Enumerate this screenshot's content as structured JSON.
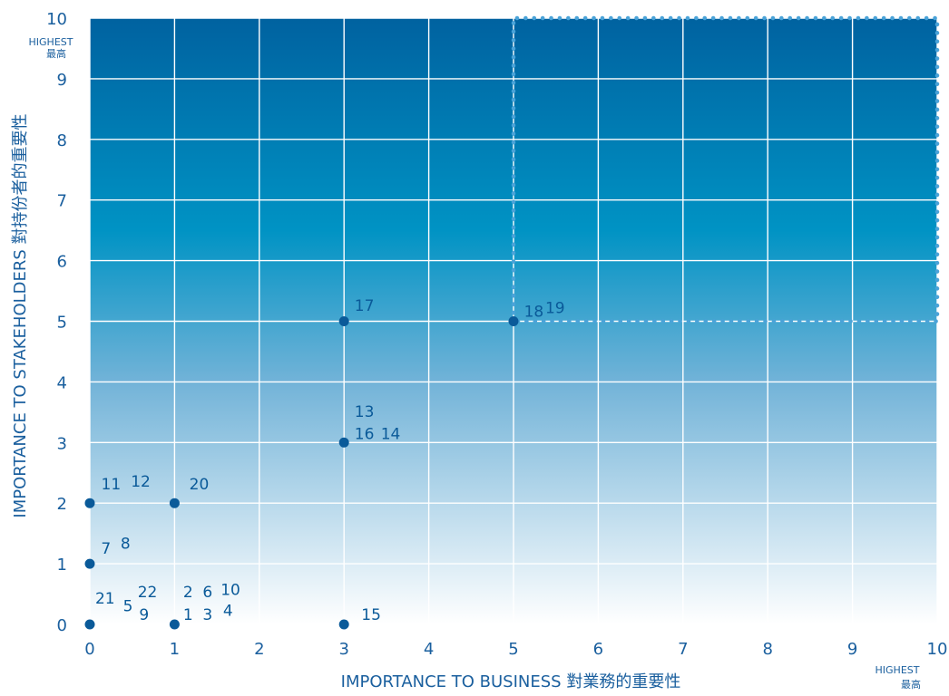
{
  "chart_data": {
    "type": "scatter",
    "x_axis": {
      "label": "IMPORTANCE TO BUSINESS 對業務的重要性",
      "range": [
        0,
        10
      ],
      "ticks": [
        0,
        1,
        2,
        3,
        4,
        5,
        6,
        7,
        8,
        9,
        10
      ],
      "max_label_line1": "HIGHEST",
      "max_label_line2": "最高"
    },
    "y_axis": {
      "label": "IMPORTANCE TO STAKEHOLDERS 對持份者的重要性",
      "range": [
        0,
        10
      ],
      "ticks": [
        0,
        1,
        2,
        3,
        4,
        5,
        6,
        7,
        8,
        9,
        10
      ],
      "max_label_line1": "HIGHEST",
      "max_label_line2": "最高"
    },
    "grid": true,
    "background_gradient": [
      "#0062a0",
      "#0093c4",
      "#72b3d8",
      "#ffffff"
    ],
    "highlight_region": {
      "x": [
        5,
        10
      ],
      "y": [
        5,
        10
      ],
      "style": "dotted"
    },
    "points": [
      {
        "x": 0,
        "y": 0,
        "labels": [
          {
            "text": "21",
            "dx": 0.18,
            "dy": 0.45
          },
          {
            "text": "5",
            "dx": 0.45,
            "dy": 0.32
          },
          {
            "text": "22",
            "dx": 0.68,
            "dy": 0.55
          },
          {
            "text": "9",
            "dx": 0.64,
            "dy": 0.18
          }
        ]
      },
      {
        "x": 1,
        "y": 0,
        "labels": [
          {
            "text": "1",
            "dx": 0.16,
            "dy": 0.18
          },
          {
            "text": "3",
            "dx": 0.39,
            "dy": 0.18
          },
          {
            "text": "2",
            "dx": 0.16,
            "dy": 0.55
          },
          {
            "text": "6",
            "dx": 0.39,
            "dy": 0.55
          },
          {
            "text": "4",
            "dx": 0.63,
            "dy": 0.25
          },
          {
            "text": "10",
            "dx": 0.66,
            "dy": 0.59
          }
        ]
      },
      {
        "x": 3,
        "y": 0,
        "labels": [
          {
            "text": "15",
            "dx": 0.32,
            "dy": 0.18
          }
        ]
      },
      {
        "x": 0,
        "y": 1,
        "labels": [
          {
            "text": "7",
            "dx": 0.19,
            "dy": 0.27
          },
          {
            "text": "8",
            "dx": 0.42,
            "dy": 0.35
          }
        ]
      },
      {
        "x": 0,
        "y": 2,
        "labels": [
          {
            "text": "11",
            "dx": 0.25,
            "dy": 0.33
          },
          {
            "text": "12",
            "dx": 0.6,
            "dy": 0.38
          }
        ]
      },
      {
        "x": 1,
        "y": 2,
        "labels": [
          {
            "text": "20",
            "dx": 0.29,
            "dy": 0.33
          }
        ]
      },
      {
        "x": 3,
        "y": 3,
        "labels": [
          {
            "text": "13",
            "dx": 0.24,
            "dy": 0.53
          },
          {
            "text": "16",
            "dx": 0.24,
            "dy": 0.16
          },
          {
            "text": "14",
            "dx": 0.55,
            "dy": 0.16
          }
        ]
      },
      {
        "x": 3,
        "y": 5,
        "labels": [
          {
            "text": "17",
            "dx": 0.24,
            "dy": 0.28
          }
        ]
      },
      {
        "x": 5,
        "y": 5,
        "labels": [
          {
            "text": "18",
            "dx": 0.24,
            "dy": 0.18
          },
          {
            "text": "19",
            "dx": 0.49,
            "dy": 0.24
          }
        ]
      }
    ]
  },
  "colors": {
    "axis_text": "#1a5f9e",
    "point": "#0a5a99",
    "grid": "#ffffff",
    "highlight": "#4aa3d8"
  }
}
